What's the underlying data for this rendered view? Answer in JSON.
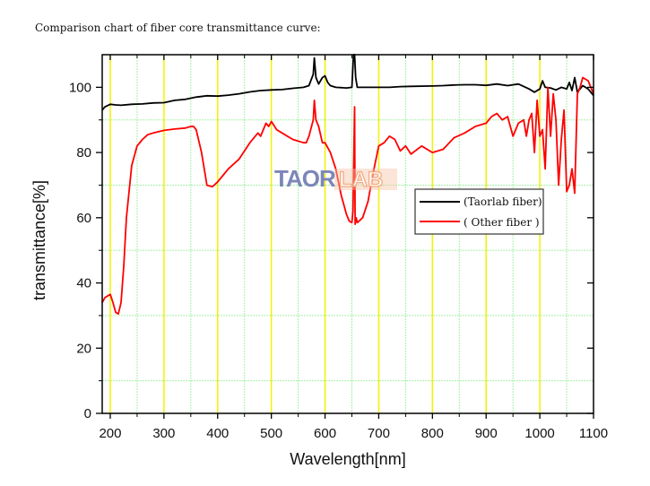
{
  "caption": "Comparison chart of fiber core transmittance curve:",
  "watermark": {
    "left": "TAOR",
    "right": "LAB"
  },
  "colors": {
    "taorlab": "#000000",
    "other": "#ff0000",
    "grid_major": "#f2f200",
    "grid_minor": "#a8f0a8",
    "watermark_blue": "#7d86b8",
    "watermark_orange": "#f0a070"
  },
  "chart_data": {
    "type": "line",
    "title": "Comparison chart of fiber core transmittance curve:",
    "xlabel": "Wavelength[nm]",
    "ylabel": "transmittance[%]",
    "xlim": [
      185,
      1100
    ],
    "ylim": [
      0,
      110
    ],
    "xticks": [
      200,
      300,
      400,
      500,
      600,
      700,
      800,
      900,
      1000,
      1100
    ],
    "yticks": [
      0,
      20,
      40,
      60,
      80,
      100
    ],
    "grid": true,
    "legend": {
      "position": "inside-right",
      "entries": [
        "(Taorlab fiber)",
        "( Other fiber )"
      ]
    },
    "series": [
      {
        "name": "Taorlab fiber",
        "color": "#000000",
        "x": [
          185,
          190,
          200,
          210,
          220,
          240,
          260,
          280,
          300,
          320,
          340,
          360,
          380,
          400,
          420,
          440,
          460,
          480,
          500,
          520,
          540,
          560,
          570,
          578,
          580,
          583,
          588,
          595,
          600,
          605,
          610,
          620,
          640,
          650,
          653,
          655,
          657,
          660,
          670,
          700,
          720,
          740,
          760,
          800,
          820,
          840,
          860,
          880,
          900,
          920,
          940,
          960,
          980,
          990,
          1000,
          1005,
          1010,
          1020,
          1030,
          1040,
          1050,
          1055,
          1060,
          1065,
          1070,
          1080,
          1090,
          1100
        ],
        "y": [
          93,
          94,
          94.8,
          94.6,
          94.5,
          94.8,
          94.9,
          95.2,
          95.3,
          96,
          96.3,
          97,
          97.4,
          97.3,
          97.6,
          98,
          98.6,
          99,
          99.2,
          99.3,
          99.7,
          100,
          100.5,
          104,
          109,
          103,
          101,
          103,
          103.5,
          101.5,
          100.5,
          100,
          99.8,
          100,
          110,
          110,
          103,
          100,
          100,
          100,
          100,
          100.2,
          100.3,
          100.4,
          100.5,
          100.7,
          100.8,
          100.8,
          100.6,
          101,
          100.5,
          101,
          99.5,
          98.5,
          99.5,
          102,
          100,
          99.8,
          99.2,
          100,
          99.5,
          101.5,
          99,
          103,
          98.5,
          100.5,
          99.5,
          97.5
        ]
      },
      {
        "name": "Other fiber",
        "color": "#ff0000",
        "x": [
          185,
          190,
          200,
          205,
          210,
          215,
          220,
          225,
          230,
          240,
          250,
          260,
          270,
          280,
          300,
          320,
          340,
          350,
          355,
          360,
          370,
          380,
          390,
          400,
          410,
          420,
          440,
          460,
          470,
          475,
          480,
          490,
          495,
          500,
          510,
          520,
          540,
          560,
          565,
          570,
          578,
          580,
          583,
          588,
          595,
          600,
          610,
          620,
          630,
          640,
          645,
          650,
          652,
          655,
          656,
          658,
          660,
          670,
          680,
          690,
          700,
          710,
          720,
          730,
          740,
          750,
          760,
          780,
          800,
          820,
          840,
          860,
          880,
          900,
          910,
          920,
          930,
          940,
          950,
          960,
          970,
          975,
          980,
          985,
          990,
          995,
          1000,
          1005,
          1010,
          1015,
          1020,
          1025,
          1030,
          1035,
          1040,
          1045,
          1050,
          1055,
          1060,
          1065,
          1070,
          1075,
          1080,
          1090,
          1100
        ],
        "y": [
          34,
          35.5,
          36.5,
          34,
          31,
          30.5,
          34,
          45,
          60,
          76,
          82,
          84,
          85.5,
          86,
          86.8,
          87.2,
          87.5,
          88,
          88,
          87,
          80,
          70,
          69.5,
          71,
          73,
          75,
          78,
          83,
          85,
          86,
          85,
          89,
          88,
          89.5,
          87,
          86,
          84,
          83,
          83,
          85,
          90,
          96,
          90,
          88,
          83,
          83,
          80,
          75,
          67,
          61,
          59,
          58.5,
          62,
          94,
          58,
          60,
          58.5,
          60,
          65,
          74,
          82,
          83,
          85,
          84,
          80.5,
          82,
          79.5,
          82,
          80,
          81,
          84.5,
          86,
          88,
          89,
          91,
          92,
          90,
          91,
          85,
          89,
          90,
          85,
          90,
          92,
          80,
          96,
          85,
          87,
          75,
          100,
          85,
          98,
          90,
          70,
          84,
          93,
          68,
          70,
          75,
          67.5,
          98,
          100,
          103,
          102,
          98
        ]
      }
    ]
  }
}
